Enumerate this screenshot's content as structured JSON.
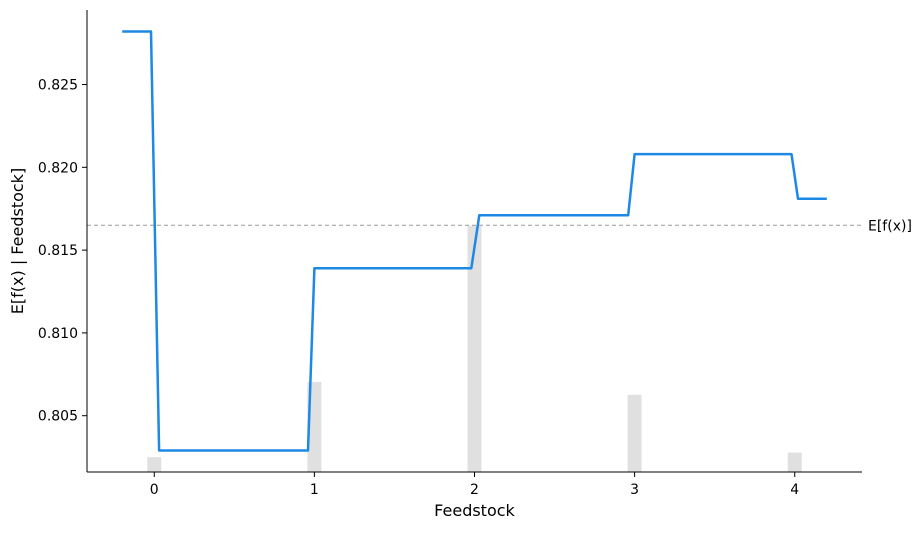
{
  "chart_data": {
    "type": "line",
    "xlabel": "Feedstock",
    "ylabel": "E[f(x) | Feedstock]",
    "xlim": [
      -0.42,
      4.42
    ],
    "ylim": [
      0.8016,
      0.8295
    ],
    "x_ticks": [
      {
        "value": 0,
        "label": "0"
      },
      {
        "value": 1,
        "label": "1"
      },
      {
        "value": 2,
        "label": "2"
      },
      {
        "value": 3,
        "label": "3"
      },
      {
        "value": 4,
        "label": "4"
      }
    ],
    "y_ticks": [
      {
        "value": 0.805,
        "label": "0.805"
      },
      {
        "value": 0.81,
        "label": "0.810"
      },
      {
        "value": 0.815,
        "label": "0.815"
      },
      {
        "value": 0.82,
        "label": "0.820"
      },
      {
        "value": 0.825,
        "label": "0.825"
      }
    ],
    "series": [
      {
        "color": "#1e88e5",
        "points": [
          [
            -0.2,
            0.8282
          ],
          [
            -0.02,
            0.8282
          ],
          [
            0.03,
            0.8029
          ],
          [
            0.96,
            0.8029
          ],
          [
            1.0,
            0.8139
          ],
          [
            1.98,
            0.8139
          ],
          [
            2.03,
            0.8171
          ],
          [
            2.96,
            0.8171
          ],
          [
            3.0,
            0.8208
          ],
          [
            3.98,
            0.8208
          ],
          [
            4.02,
            0.8181
          ],
          [
            4.2,
            0.8181
          ]
        ]
      }
    ],
    "histogram": {
      "color": "#e0e0e0",
      "bars": [
        {
          "x": 0,
          "fraction": 0.032
        },
        {
          "x": 1,
          "fraction": 0.195
        },
        {
          "x": 2,
          "fraction": 0.533
        },
        {
          "x": 3,
          "fraction": 0.167
        },
        {
          "x": 4,
          "fraction": 0.042
        }
      ]
    },
    "reference_line": {
      "value": 0.8165,
      "label": "E[f(x)]",
      "color": "#999999"
    }
  }
}
